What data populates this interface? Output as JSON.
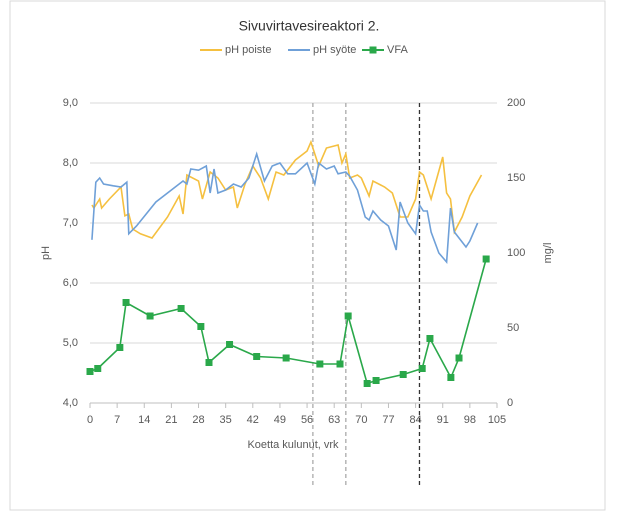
{
  "chart_data": {
    "type": "line",
    "title": "Sivuvirtavesireaktori 2.",
    "xlabel": "Koetta kulunut, vrk",
    "ylabel": "pH",
    "y2label": "mg/l",
    "xlim": [
      0,
      105
    ],
    "xticks": [
      0,
      7,
      14,
      21,
      28,
      35,
      42,
      49,
      56,
      63,
      70,
      77,
      84,
      91,
      98,
      105
    ],
    "ylim": [
      4,
      9
    ],
    "yticks": [
      {
        "value": 4,
        "label": "4,0"
      },
      {
        "value": 5,
        "label": "5,0"
      },
      {
        "value": 6,
        "label": "6,0"
      },
      {
        "value": 7,
        "label": "7,0"
      },
      {
        "value": 8,
        "label": "8,0"
      },
      {
        "value": 9,
        "label": "9,0"
      }
    ],
    "y2lim": [
      0,
      200
    ],
    "y2ticks": [
      0,
      50,
      100,
      150,
      200
    ],
    "grid": true,
    "legend": "top",
    "vlines": [
      {
        "x": 57.5,
        "color": "#aaaaaa"
      },
      {
        "x": 66,
        "color": "#aaaaaa"
      },
      {
        "x": 85,
        "color": "#333333"
      }
    ],
    "series": [
      {
        "name": "pH poiste",
        "color": "#f5c040",
        "x": [
          0.5,
          1,
          2.5,
          3,
          5,
          8,
          9,
          10,
          11,
          13,
          16,
          20,
          23,
          24,
          25,
          28,
          29,
          31,
          33,
          35,
          37,
          38,
          40,
          42,
          44,
          46,
          48,
          50,
          53,
          56,
          57,
          59,
          61,
          64,
          65,
          66,
          67,
          69,
          70,
          72,
          73,
          76,
          78,
          80,
          82,
          84,
          85,
          86,
          88,
          91,
          92,
          93,
          94,
          96,
          98,
          101
        ],
        "values": [
          7.3,
          7.25,
          7.4,
          7.25,
          7.4,
          7.6,
          7.12,
          7.15,
          6.9,
          6.82,
          6.75,
          7.1,
          7.45,
          7.15,
          7.8,
          7.7,
          7.4,
          7.85,
          7.75,
          7.55,
          7.6,
          7.25,
          7.65,
          7.95,
          7.75,
          7.4,
          7.85,
          7.8,
          8.05,
          8.2,
          8.35,
          7.95,
          8.25,
          8.3,
          8.0,
          8.15,
          7.75,
          7.8,
          7.75,
          7.45,
          7.7,
          7.6,
          7.5,
          7.1,
          7.1,
          7.4,
          7.85,
          7.8,
          7.4,
          8.1,
          7.5,
          7.4,
          6.85,
          7.1,
          7.45,
          7.8
        ]
      },
      {
        "name": "pH syöte",
        "color": "#6fa0d8",
        "x": [
          0.5,
          1.5,
          2.5,
          3.5,
          6,
          8,
          9.5,
          10,
          12,
          17,
          22,
          24,
          25,
          26,
          28,
          30,
          31,
          32,
          33,
          35,
          37,
          39,
          41,
          43,
          45,
          47,
          49,
          51,
          53,
          56,
          58,
          59,
          61,
          63,
          64,
          66,
          67,
          69,
          71,
          72,
          73,
          75,
          77,
          79,
          80,
          82,
          84,
          85,
          86,
          87,
          88,
          90,
          92,
          93,
          94,
          97,
          98,
          100
        ],
        "values": [
          6.72,
          7.68,
          7.75,
          7.65,
          7.62,
          7.6,
          7.68,
          6.82,
          6.95,
          7.35,
          7.6,
          7.7,
          7.65,
          7.9,
          7.88,
          7.95,
          7.5,
          7.9,
          7.5,
          7.55,
          7.65,
          7.6,
          7.75,
          8.15,
          7.7,
          7.95,
          8.0,
          7.82,
          7.82,
          8.0,
          7.65,
          8.0,
          7.9,
          7.95,
          7.82,
          7.85,
          7.78,
          7.55,
          7.1,
          7.05,
          7.2,
          7.05,
          6.95,
          6.55,
          7.35,
          7.0,
          6.82,
          7.3,
          7.2,
          7.2,
          6.85,
          6.5,
          6.35,
          7.25,
          6.85,
          6.6,
          6.7,
          7.0
        ]
      },
      {
        "name": "VFA",
        "color": "#2aa84a",
        "axis": "y2",
        "marker": "square",
        "x": [
          0,
          2,
          7.7,
          9.3,
          15.5,
          23.5,
          28.6,
          30.7,
          36,
          43,
          50.6,
          59.3,
          64.5,
          66.6,
          71.5,
          73.8,
          80.8,
          85.7,
          87.7,
          93.1,
          95.2,
          102.2
        ],
        "values": [
          21,
          23,
          37,
          67,
          58,
          63,
          51,
          27,
          39,
          31,
          30,
          26,
          26,
          58,
          13,
          15,
          19,
          23,
          43,
          17,
          30,
          96
        ]
      }
    ]
  }
}
